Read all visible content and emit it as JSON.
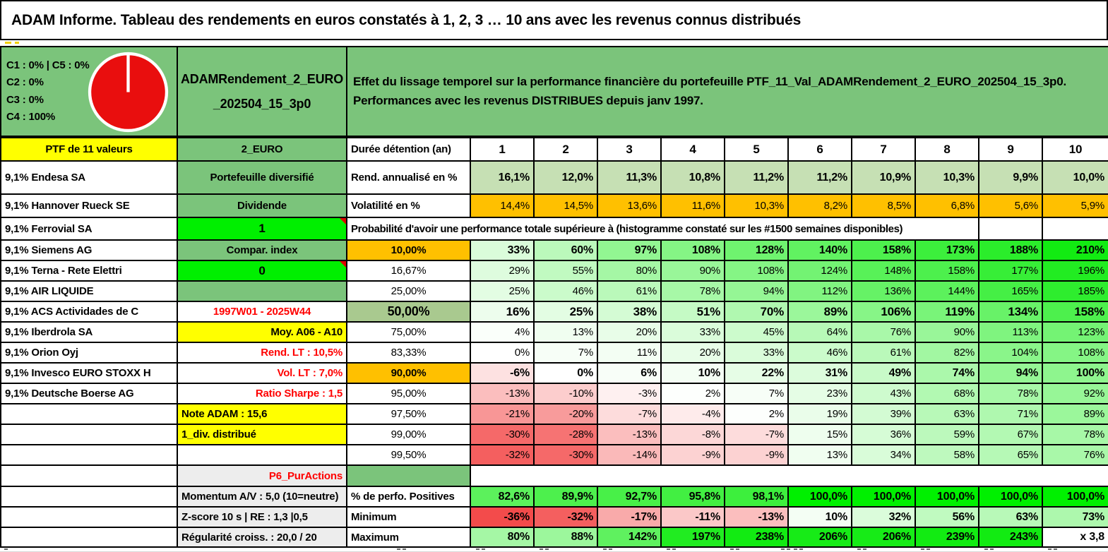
{
  "title": "ADAM Informe. Tableau des rendements en euros constatés à 1, 2, 3 … 10 ans avec les revenus connus distribués",
  "portfolio": {
    "classes": [
      "C1 : 0% | C5 : 0%",
      "C2 : 0%",
      "C3 : 0%",
      "C4 : 100%"
    ],
    "id_lines": [
      "ADAMRendement_2_EURO",
      "_202504_15_3p0"
    ],
    "description_lines": [
      "Effet du lissage temporel sur la performance financière du portefeuille PTF_11_Val_ADAMRendement_2_EURO_202504_15_3p0.",
      "Performances avec les revenus DISTRIBUES depuis janv 1997."
    ],
    "pie": {
      "slice_label": "C4",
      "slice_value": "100%",
      "color": "#E90E0E"
    }
  },
  "colors": {
    "header_green": "#7BC47B",
    "light_green": "#C6E0B4",
    "orange": "#FFC000",
    "yellow": "#FFFF00",
    "bright_green": "#00EF00",
    "sage": "#A9C98F",
    "gray_label": "#EDEDED",
    "red_text": "#FF0000",
    "scale_green": "#12EB12",
    "scale_green_full": "#00F000",
    "scale_red": "#F34B4B",
    "bottom_bar": "#D9D9D9"
  },
  "table": {
    "rows": [
      {
        "left": {
          "t": "PTF de 11 valeurs",
          "bg": "yellow",
          "align": "center",
          "bold": true
        },
        "mid": {
          "t": "2_EURO",
          "bg": "green",
          "bold": true
        },
        "label": {
          "t": "Durée détention (an)",
          "bold": true,
          "align": "left"
        },
        "cells": {
          "values": [
            "1",
            "2",
            "3",
            "4",
            "5",
            "6",
            "7",
            "8",
            "9",
            "10"
          ],
          "fill": "white",
          "bold": true,
          "align": "center",
          "size": 17
        }
      },
      {
        "left": {
          "t": "9,1% Endesa SA"
        },
        "mid": {
          "t": "Portefeuille diversifié",
          "bg": "green",
          "bold": true
        },
        "label": {
          "t": "Rend. annualisé en %",
          "bold": true,
          "align": "left"
        },
        "cells": {
          "values": [
            "16,1%",
            "12,0%",
            "11,3%",
            "10,8%",
            "11,2%",
            "11,2%",
            "10,9%",
            "10,3%",
            "9,9%",
            "10,0%"
          ],
          "fill": "lightgreen",
          "bold": true,
          "size": 16
        }
      },
      {
        "left": {
          "t": "9,1% Hannover Rueck SE"
        },
        "mid": {
          "t": "Dividende",
          "bg": "green",
          "bold": true
        },
        "label": {
          "t": "Volatilité en %",
          "bold": true,
          "align": "left"
        },
        "cells": {
          "values": [
            "14,4%",
            "14,5%",
            "13,6%",
            "11,6%",
            "10,3%",
            "8,2%",
            "8,5%",
            "6,8%",
            "5,6%",
            "5,9%"
          ],
          "fill": "orange"
        }
      },
      {
        "left": {
          "t": "9,1% Ferrovial SA"
        },
        "mid": {
          "t": "1",
          "bg": "bright",
          "bold": true,
          "note": true,
          "size": 17
        },
        "span": {
          "text": "Probabilité d'avoir une performance totale supérieure à (histogramme constaté sur les #1500 semaines disponibles)",
          "cols": 9,
          "empty": 2
        }
      },
      {
        "left": {
          "t": "9,1% Siemens AG"
        },
        "mid": {
          "t": "Compar. index",
          "bg": "green",
          "bold": true
        },
        "label": {
          "t": "10,00%",
          "bg": "orange",
          "bold": true
        },
        "cells": {
          "values": [
            "33%",
            "60%",
            "97%",
            "108%",
            "128%",
            "140%",
            "158%",
            "173%",
            "188%",
            "210%"
          ],
          "fill": "gradient",
          "bold": true,
          "size": 16
        }
      },
      {
        "left": {
          "t": "9,1% Terna - Rete Elettri"
        },
        "mid": {
          "t": "0",
          "bg": "bright",
          "bold": true,
          "note": true,
          "size": 17
        },
        "label": {
          "t": "16,67%"
        },
        "cells": {
          "values": [
            "29%",
            "55%",
            "80%",
            "90%",
            "108%",
            "124%",
            "148%",
            "158%",
            "177%",
            "196%"
          ],
          "fill": "gradient"
        }
      },
      {
        "left": {
          "t": "9,1% AIR LIQUIDE"
        },
        "mid": {
          "t": "",
          "bg": "green"
        },
        "label": {
          "t": "25,00%"
        },
        "cells": {
          "values": [
            "25%",
            "46%",
            "61%",
            "78%",
            "94%",
            "112%",
            "136%",
            "144%",
            "165%",
            "185%"
          ],
          "fill": "gradient"
        }
      },
      {
        "left": {
          "t": "9,1% ACS Actividades de C"
        },
        "mid": {
          "t": "1997W01 - 2025W44",
          "fg": "red",
          "bold": true
        },
        "label": {
          "t": "50,00%",
          "bg": "sage",
          "bold": true,
          "size": 18
        },
        "cells": {
          "values": [
            "16%",
            "25%",
            "38%",
            "51%",
            "70%",
            "89%",
            "106%",
            "119%",
            "134%",
            "158%"
          ],
          "fill": "gradient",
          "bold": true,
          "size": 17
        }
      },
      {
        "left": {
          "t": "9,1% Iberdrola SA"
        },
        "mid": {
          "t": "Moy. A06 - A10",
          "bg": "yellow",
          "align": "right",
          "bold": true
        },
        "label": {
          "t": "75,00%"
        },
        "cells": {
          "values": [
            "4%",
            "13%",
            "20%",
            "33%",
            "45%",
            "64%",
            "76%",
            "90%",
            "113%",
            "123%"
          ],
          "fill": "gradient"
        }
      },
      {
        "left": {
          "t": "9,1% Orion Oyj"
        },
        "mid": {
          "t": "Rend. LT : 10,5%",
          "fg": "red",
          "align": "right",
          "bold": true
        },
        "label": {
          "t": "83,33%"
        },
        "cells": {
          "values": [
            "0%",
            "7%",
            "11%",
            "20%",
            "33%",
            "46%",
            "61%",
            "82%",
            "104%",
            "108%"
          ],
          "fill": "gradient"
        }
      },
      {
        "left": {
          "t": "9,1% Invesco EURO STOXX H"
        },
        "mid": {
          "t": "Vol. LT : 7,0%",
          "fg": "red",
          "align": "right",
          "bold": true
        },
        "label": {
          "t": "90,00%",
          "bg": "orange",
          "bold": true
        },
        "cells": {
          "values": [
            "-6%",
            "0%",
            "6%",
            "10%",
            "22%",
            "31%",
            "49%",
            "74%",
            "94%",
            "100%"
          ],
          "fill": "gradient",
          "bold": true,
          "size": 16
        }
      },
      {
        "left": {
          "t": "9,1% Deutsche Boerse AG"
        },
        "mid": {
          "t": "Ratio Sharpe : 1,5",
          "fg": "red",
          "align": "right",
          "bold": true
        },
        "label": {
          "t": "95,00%"
        },
        "cells": {
          "values": [
            "-13%",
            "-10%",
            "-3%",
            "2%",
            "7%",
            "23%",
            "43%",
            "68%",
            "78%",
            "92%"
          ],
          "fill": "gradient"
        }
      },
      {
        "left": {
          "t": ""
        },
        "mid": {
          "t": "Note ADAM : 15,6",
          "bg": "yellow",
          "align": "left",
          "bold": true
        },
        "label": {
          "t": "97,50%"
        },
        "cells": {
          "values": [
            "-21%",
            "-20%",
            "-7%",
            "-4%",
            "2%",
            "19%",
            "39%",
            "63%",
            "71%",
            "89%"
          ],
          "fill": "gradient"
        }
      },
      {
        "left": {
          "t": ""
        },
        "mid": {
          "t": "1_div. distribué",
          "bg": "yellow",
          "align": "left",
          "bold": true
        },
        "label": {
          "t": "99,00%"
        },
        "cells": {
          "values": [
            "-30%",
            "-28%",
            "-13%",
            "-8%",
            "-7%",
            "15%",
            "36%",
            "59%",
            "67%",
            "78%"
          ],
          "fill": "gradient"
        }
      },
      {
        "left": {
          "t": ""
        },
        "mid": {
          "t": ""
        },
        "label": {
          "t": "99,50%"
        },
        "cells": {
          "values": [
            "-32%",
            "-30%",
            "-14%",
            "-9%",
            "-9%",
            "13%",
            "34%",
            "58%",
            "65%",
            "76%"
          ],
          "fill": "gradient"
        }
      },
      {
        "left": {
          "t": ""
        },
        "mid": {
          "t": "P6_PurActions",
          "bg": "gray",
          "fg": "red",
          "align": "right",
          "bold": true
        },
        "label": {
          "t": "",
          "bg": "green"
        },
        "blank_span": true
      },
      {
        "left": {
          "t": ""
        },
        "mid": {
          "t": "Momentum A/V : 5,0 (10=neutre)",
          "bg": "gray",
          "align": "left",
          "bold": true
        },
        "label": {
          "t": "% de perfo. Positives",
          "bold": true,
          "align": "left"
        },
        "cells": {
          "values": [
            "82,6%",
            "89,9%",
            "92,7%",
            "95,8%",
            "98,1%",
            "100,0%",
            "100,0%",
            "100,0%",
            "100,0%",
            "100,0%"
          ],
          "fill": "gradient",
          "scale": "positives",
          "bold": true,
          "size": 16
        }
      },
      {
        "left": {
          "t": ""
        },
        "mid": {
          "t": "Z-score 10 s | RE : 1,3 |0,5",
          "bg": "gray",
          "align": "left",
          "bold": true
        },
        "label": {
          "t": "Minimum",
          "bold": true,
          "align": "left"
        },
        "cells": {
          "values": [
            "-36%",
            "-32%",
            "-17%",
            "-11%",
            "-13%",
            "10%",
            "32%",
            "56%",
            "63%",
            "73%"
          ],
          "fill": "gradient",
          "bold": true,
          "size": 16
        }
      },
      {
        "left": {
          "t": ""
        },
        "mid": {
          "t": "Régularité croiss. : 20,0 / 20",
          "bg": "gray",
          "align": "left",
          "bold": true
        },
        "label": {
          "t": "Maximum",
          "bold": true,
          "align": "left"
        },
        "cells": {
          "values": [
            "80%",
            "88%",
            "142%",
            "197%",
            "238%",
            "206%",
            "206%",
            "239%",
            "243%",
            "x 3,8"
          ],
          "fill": "gradient",
          "bold": true,
          "size": 16
        }
      }
    ]
  }
}
